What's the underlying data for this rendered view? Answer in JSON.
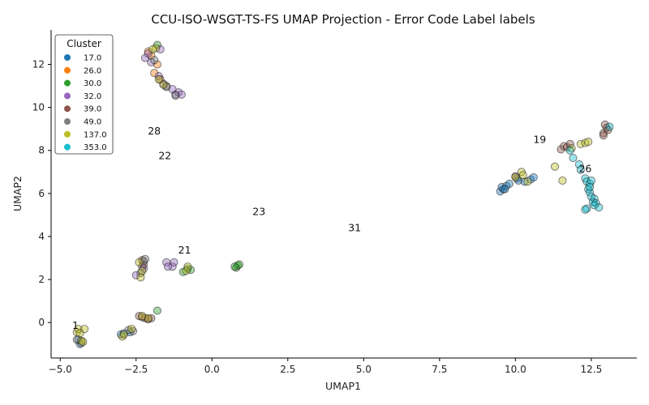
{
  "chart_data": {
    "type": "scatter",
    "title": "CCU-ISO-WSGT-TS-FS UMAP Projection - Error Code Label labels",
    "xlabel": "UMAP1",
    "ylabel": "UMAP2",
    "xlim": [
      -5.3,
      14.0
    ],
    "ylim": [
      -1.65,
      13.6
    ],
    "xticks": [
      -5.0,
      -2.5,
      0.0,
      2.5,
      5.0,
      7.5,
      10.0,
      12.5
    ],
    "xtick_labels": [
      "−5.0",
      "−2.5",
      "0.0",
      "2.5",
      "5.0",
      "7.5",
      "10.0",
      "12.5"
    ],
    "yticks": [
      0,
      2,
      4,
      6,
      8,
      10,
      12
    ],
    "ytick_labels": [
      "0",
      "2",
      "4",
      "6",
      "8",
      "10",
      "12"
    ],
    "legend": {
      "title": "Cluster",
      "position": "top-left"
    },
    "series": [
      {
        "name": "17.0",
        "color": "#1f77b4",
        "points": [
          [
            9.5,
            6.1
          ],
          [
            9.6,
            6.2
          ],
          [
            9.55,
            6.3
          ],
          [
            9.7,
            6.35
          ],
          [
            9.8,
            6.45
          ],
          [
            10.05,
            6.7
          ],
          [
            10.1,
            6.6
          ],
          [
            10.3,
            6.55
          ],
          [
            10.5,
            6.65
          ],
          [
            10.6,
            6.75
          ],
          [
            -4.4,
            -0.8
          ],
          [
            -4.35,
            -1.0
          ],
          [
            -3.0,
            -0.55
          ],
          [
            -2.9,
            -0.5
          ],
          [
            -2.7,
            -0.45
          ],
          [
            9.65,
            6.2
          ]
        ]
      },
      {
        "name": "26.0",
        "color": "#ff7f0e",
        "points": [
          [
            -2.0,
            12.4
          ],
          [
            -1.8,
            12.0
          ],
          [
            -1.9,
            11.6
          ],
          [
            -2.1,
            12.6
          ]
        ]
      },
      {
        "name": "30.0",
        "color": "#2ca02c",
        "points": [
          [
            -1.8,
            12.9
          ],
          [
            -1.8,
            0.55
          ],
          [
            -0.95,
            2.35
          ],
          [
            -0.8,
            2.5
          ],
          [
            -0.7,
            2.45
          ],
          [
            0.8,
            2.55
          ],
          [
            0.85,
            2.65
          ],
          [
            0.9,
            2.7
          ],
          [
            0.75,
            2.6
          ]
        ]
      },
      {
        "name": "32.0",
        "color": "#9467bd",
        "points": [
          [
            -2.2,
            12.3
          ],
          [
            -2.1,
            12.5
          ],
          [
            -1.7,
            12.7
          ],
          [
            -2.0,
            12.1
          ],
          [
            -1.75,
            11.45
          ],
          [
            -1.6,
            11.1
          ],
          [
            -1.3,
            10.85
          ],
          [
            -1.2,
            10.6
          ],
          [
            -1.1,
            10.7
          ],
          [
            -1.0,
            10.6
          ],
          [
            -2.5,
            2.2
          ],
          [
            -2.25,
            2.5
          ],
          [
            -2.3,
            2.6
          ],
          [
            -1.5,
            2.8
          ],
          [
            -1.3,
            2.6
          ],
          [
            -1.25,
            2.8
          ],
          [
            -1.45,
            2.6
          ]
        ]
      },
      {
        "name": "39.0",
        "color": "#8c564b",
        "points": [
          [
            11.5,
            8.05
          ],
          [
            11.6,
            8.2
          ],
          [
            11.7,
            8.15
          ],
          [
            11.8,
            8.3
          ],
          [
            12.9,
            8.8
          ],
          [
            13.0,
            9.05
          ],
          [
            12.95,
            9.2
          ],
          [
            13.05,
            8.95
          ],
          [
            12.9,
            8.7
          ],
          [
            10.0,
            6.8
          ],
          [
            -2.3,
            2.9
          ],
          [
            -2.25,
            2.7
          ],
          [
            -2.4,
            0.3
          ],
          [
            -2.2,
            0.2
          ],
          [
            -2.1,
            0.15
          ],
          [
            -2.3,
            0.25
          ],
          [
            -2.0,
            0.2
          ],
          [
            -1.5,
            11.0
          ],
          [
            -1.7,
            11.3
          ]
        ]
      },
      {
        "name": "49.0",
        "color": "#7f7f7f",
        "points": [
          [
            -2.35,
            2.3
          ],
          [
            -2.25,
            2.85
          ],
          [
            -2.2,
            2.95
          ],
          [
            -4.45,
            -0.8
          ],
          [
            -4.3,
            -0.95
          ],
          [
            -2.6,
            -0.4
          ],
          [
            -2.75,
            -0.35
          ],
          [
            -1.2,
            10.55
          ],
          [
            -1.5,
            10.95
          ],
          [
            -1.9,
            12.2
          ]
        ]
      },
      {
        "name": "137.0",
        "color": "#bcbd22",
        "points": [
          [
            11.3,
            7.25
          ],
          [
            11.55,
            6.6
          ],
          [
            11.85,
            8.1
          ],
          [
            12.15,
            8.3
          ],
          [
            12.3,
            8.35
          ],
          [
            12.4,
            8.4
          ],
          [
            10.2,
            7.0
          ],
          [
            10.25,
            6.85
          ],
          [
            10.4,
            6.55
          ],
          [
            10.0,
            6.75
          ],
          [
            -1.85,
            12.75
          ],
          [
            -1.95,
            12.7
          ],
          [
            -1.6,
            11.05
          ],
          [
            -1.75,
            11.3
          ],
          [
            -2.4,
            2.8
          ],
          [
            -2.35,
            2.1
          ],
          [
            -2.3,
            2.4
          ],
          [
            -0.8,
            2.6
          ],
          [
            -0.85,
            2.4
          ],
          [
            -4.45,
            -0.45
          ],
          [
            -4.4,
            -0.3
          ],
          [
            -4.2,
            -0.3
          ],
          [
            -4.35,
            -0.5
          ],
          [
            -4.3,
            -0.85
          ],
          [
            -4.25,
            -0.9
          ],
          [
            -2.95,
            -0.65
          ],
          [
            -2.9,
            -0.55
          ],
          [
            -2.65,
            -0.3
          ],
          [
            -2.3,
            0.3
          ],
          [
            -2.1,
            0.2
          ]
        ]
      },
      {
        "name": "353.0",
        "color": "#17becf",
        "points": [
          [
            11.9,
            7.65
          ],
          [
            12.1,
            7.35
          ],
          [
            12.15,
            7.1
          ],
          [
            12.3,
            6.7
          ],
          [
            12.35,
            6.55
          ],
          [
            12.45,
            6.45
          ],
          [
            12.4,
            6.2
          ],
          [
            12.45,
            6.05
          ],
          [
            12.5,
            5.85
          ],
          [
            12.6,
            5.75
          ],
          [
            12.55,
            5.6
          ],
          [
            12.65,
            5.55
          ],
          [
            12.6,
            5.45
          ],
          [
            12.75,
            5.35
          ],
          [
            12.35,
            5.3
          ],
          [
            12.3,
            5.25
          ],
          [
            13.1,
            9.1
          ],
          [
            11.8,
            8.0
          ],
          [
            12.5,
            6.6
          ],
          [
            12.45,
            6.3
          ]
        ]
      }
    ],
    "annotations": [
      {
        "text": "1",
        "x": -4.5,
        "y": -0.3
      },
      {
        "text": "28",
        "x": -1.9,
        "y": 8.75
      },
      {
        "text": "22",
        "x": -1.55,
        "y": 7.6
      },
      {
        "text": "23",
        "x": 1.55,
        "y": 5.0
      },
      {
        "text": "31",
        "x": 4.7,
        "y": 4.25
      },
      {
        "text": "21",
        "x": -0.9,
        "y": 3.2
      },
      {
        "text": "19",
        "x": 10.8,
        "y": 8.35
      },
      {
        "text": "26",
        "x": 12.3,
        "y": 7.0
      }
    ]
  }
}
